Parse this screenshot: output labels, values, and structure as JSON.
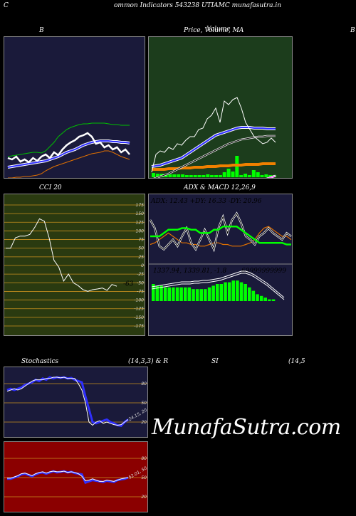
{
  "header": {
    "corner_left": "C",
    "title": "ommon  Indicators 543238  UTIAMC munafasutra.in",
    "corner_right": "B"
  },
  "watermark": "MunafaSutra.com",
  "colors": {
    "bb_bg": "#1a1a3a",
    "price_bg": "#1c3d1c",
    "cci_bg": "#2a3a10",
    "adx_bg": "#1a1a3a",
    "sto_bg": "#1a1a3a",
    "rsi_bg": "#8b0000",
    "grid": "#c8901e"
  },
  "panels": {
    "bb": {
      "title": "B"
    },
    "price": {
      "title": "Price,  Volume,  MA",
      "title_overlap": "Volume"
    },
    "cci": {
      "title": "CCI 20",
      "last_label": "-63"
    },
    "adx": {
      "title": "ADX  & MACD 12,26,9",
      "readout": "ADX: 12.43  +DY: 16.33 -DY: 20.96",
      "macd_readout": "1337.94,  1339.81,  -1.8",
      "macd_tail": "69999999999"
    },
    "sto": {
      "title_left": "Stochastics",
      "title_mid": "(14,3,3) & R",
      "title_si": "SI",
      "title_right": "(14,5",
      "last_label": "24.15, 20"
    },
    "rsi": {
      "last_label": "52.01, 50"
    }
  },
  "chart_data": [
    {
      "name": "bollinger",
      "type": "line",
      "series": [
        {
          "color": "#ffffff",
          "values": [
            170,
            172,
            168,
            175,
            172,
            176,
            170,
            174,
            168,
            165,
            170,
            162,
            166,
            158,
            152,
            148,
            145,
            140,
            138,
            135,
            140,
            150,
            148,
            155,
            152,
            158,
            155,
            162,
            158,
            165
          ]
        },
        {
          "color": "#2f2fff",
          "values": [
            183,
            182,
            181,
            180,
            179,
            178,
            177,
            176,
            175,
            174,
            172,
            170,
            168,
            165,
            162,
            160,
            158,
            155,
            152,
            150,
            148,
            147,
            146,
            146,
            146,
            147,
            147,
            148,
            148,
            149
          ]
        },
        {
          "color": "#00c000",
          "values": [
            168,
            167,
            166,
            165,
            164,
            163,
            162,
            162,
            163,
            160,
            154,
            148,
            140,
            135,
            130,
            127,
            125,
            123,
            122,
            122,
            121,
            121,
            121,
            121,
            122,
            123,
            123,
            124,
            124,
            124
          ]
        },
        {
          "color": "#e07000",
          "values": [
            198,
            198,
            197,
            197,
            196,
            196,
            195,
            194,
            192,
            188,
            185,
            182,
            180,
            178,
            176,
            174,
            172,
            170,
            168,
            166,
            164,
            163,
            162,
            160,
            160,
            162,
            165,
            168,
            170,
            172
          ]
        }
      ]
    },
    {
      "name": "price",
      "type": "line",
      "series": [
        {
          "color": "#ffffff",
          "values": [
            190,
            165,
            160,
            162,
            155,
            158,
            150,
            152,
            145,
            140,
            140,
            130,
            128,
            115,
            110,
            100,
            120,
            90,
            95,
            88,
            85,
            100,
            120,
            130,
            140,
            145,
            150,
            148,
            142,
            148
          ]
        },
        {
          "color": "#2f2fff",
          "values": [
            182,
            181,
            180,
            178,
            176,
            174,
            172,
            170,
            166,
            162,
            158,
            154,
            150,
            146,
            142,
            138,
            136,
            134,
            132,
            130,
            128,
            127,
            127,
            127,
            128,
            128,
            128,
            129,
            129,
            129
          ]
        },
        {
          "color": "#ffffff",
          "values": [
            200,
            198,
            196,
            194,
            192,
            189,
            186,
            183,
            180,
            177,
            174,
            171,
            168,
            165,
            162,
            159,
            156,
            153,
            150,
            148,
            146,
            144,
            143,
            142,
            141,
            140,
            140,
            139,
            139,
            139
          ]
        },
        {
          "color": "#f08000",
          "values": [
            186,
            186,
            186,
            186,
            185,
            185,
            185,
            184,
            184,
            184,
            183,
            183,
            183,
            182,
            182,
            182,
            181,
            181,
            181,
            180,
            180,
            180,
            179,
            179,
            179,
            179,
            178,
            178,
            178,
            178
          ]
        },
        {
          "color": "#ff55ff",
          "values": [
            214,
            214,
            214,
            214,
            214,
            214,
            214,
            214,
            213,
            213,
            213,
            213,
            213,
            212,
            212,
            212,
            212,
            212,
            211,
            211,
            210,
            209,
            208,
            207,
            205,
            203,
            201,
            199,
            197,
            195
          ]
        }
      ],
      "volume": [
        6,
        5,
        5,
        4,
        4,
        4,
        4,
        4,
        3,
        3,
        3,
        3,
        3,
        4,
        3,
        3,
        3,
        7,
        12,
        8,
        30,
        3,
        5,
        3,
        10,
        7,
        3,
        4,
        3,
        3
      ]
    },
    {
      "name": "cci",
      "type": "line",
      "y_ticks": [
        "175",
        "150",
        "125",
        "100",
        "75",
        "50",
        "25",
        "0",
        "-25",
        "-50",
        "-75",
        "-100",
        "-125",
        "-150",
        "-175"
      ],
      "values": [
        50,
        50,
        80,
        85,
        85,
        90,
        110,
        135,
        128,
        80,
        15,
        -5,
        -45,
        -25,
        -50,
        -58,
        -70,
        -75,
        -70,
        -68,
        -65,
        -72,
        -55,
        -60
      ]
    },
    {
      "name": "adx",
      "type": "line",
      "series": [
        {
          "color": "#ffffff",
          "values": [
            30,
            25,
            14,
            12,
            15,
            18,
            14,
            20,
            25,
            16,
            12,
            18,
            24,
            18,
            12,
            25,
            32,
            22,
            30,
            34,
            28,
            20,
            18,
            15,
            20,
            22,
            25,
            22,
            20,
            18,
            22,
            20
          ]
        },
        {
          "color": "#e07000",
          "values": [
            15,
            16,
            18,
            20,
            22,
            20,
            18,
            16,
            16,
            15,
            15,
            14,
            14,
            15,
            16,
            16,
            15,
            15,
            14,
            14,
            14,
            15,
            16,
            18,
            22,
            25,
            26,
            24,
            22,
            20,
            20,
            18
          ]
        },
        {
          "color": "#00ff00",
          "values": [
            20,
            20,
            20,
            22,
            24,
            24,
            24,
            25,
            25,
            24,
            24,
            22,
            22,
            22,
            24,
            24,
            26,
            26,
            26,
            26,
            24,
            22,
            20,
            18,
            16,
            16,
            16,
            16,
            16,
            16,
            15,
            15
          ]
        }
      ]
    },
    {
      "name": "macd",
      "type": "bar",
      "values": [
        10,
        9,
        9,
        8,
        8,
        8,
        8,
        8,
        8,
        8,
        7,
        7,
        7,
        7,
        8,
        9,
        10,
        10,
        11,
        11,
        12,
        12,
        11,
        10,
        8,
        6,
        4,
        3,
        2,
        1,
        1,
        0
      ]
    },
    {
      "name": "stochastics",
      "type": "line",
      "y_ticks": [
        "80",
        "50",
        "20"
      ],
      "series": [
        {
          "color": "#2f2fff",
          "values": [
            70,
            72,
            70,
            72,
            74,
            78,
            80,
            82,
            86,
            84,
            88,
            86,
            90,
            88,
            90,
            89,
            90,
            88,
            89,
            86,
            84,
            82,
            60,
            40,
            20,
            18,
            20,
            22,
            24,
            20,
            18,
            15,
            14,
            20,
            24
          ]
        },
        {
          "color": "#ffffff",
          "values": [
            68,
            70,
            72,
            70,
            72,
            76,
            80,
            84,
            86,
            86,
            86,
            88,
            88,
            90,
            90,
            89,
            90,
            88,
            88,
            88,
            80,
            70,
            50,
            20,
            15,
            20,
            22,
            18,
            20,
            18,
            16,
            15,
            16,
            20,
            24
          ]
        }
      ]
    },
    {
      "name": "rsi",
      "type": "line",
      "y_ticks": [
        "80",
        "50",
        "20"
      ],
      "series": [
        {
          "color": "#2f2fff",
          "values": [
            48,
            48,
            50,
            52,
            55,
            56,
            54,
            52,
            55,
            57,
            58,
            56,
            58,
            60,
            58,
            59,
            60,
            58,
            59,
            57,
            56,
            55,
            42,
            44,
            46,
            45,
            44,
            43,
            45,
            44,
            43,
            46,
            47,
            48,
            50
          ]
        },
        {
          "color": "#ffffff",
          "values": [
            49,
            49,
            51,
            53,
            56,
            57,
            55,
            53,
            56,
            58,
            59,
            57,
            59,
            60,
            59,
            59,
            60,
            58,
            59,
            58,
            56,
            52,
            45,
            46,
            48,
            46,
            44,
            44,
            46,
            45,
            44,
            46,
            48,
            49,
            50
          ]
        }
      ]
    }
  ]
}
